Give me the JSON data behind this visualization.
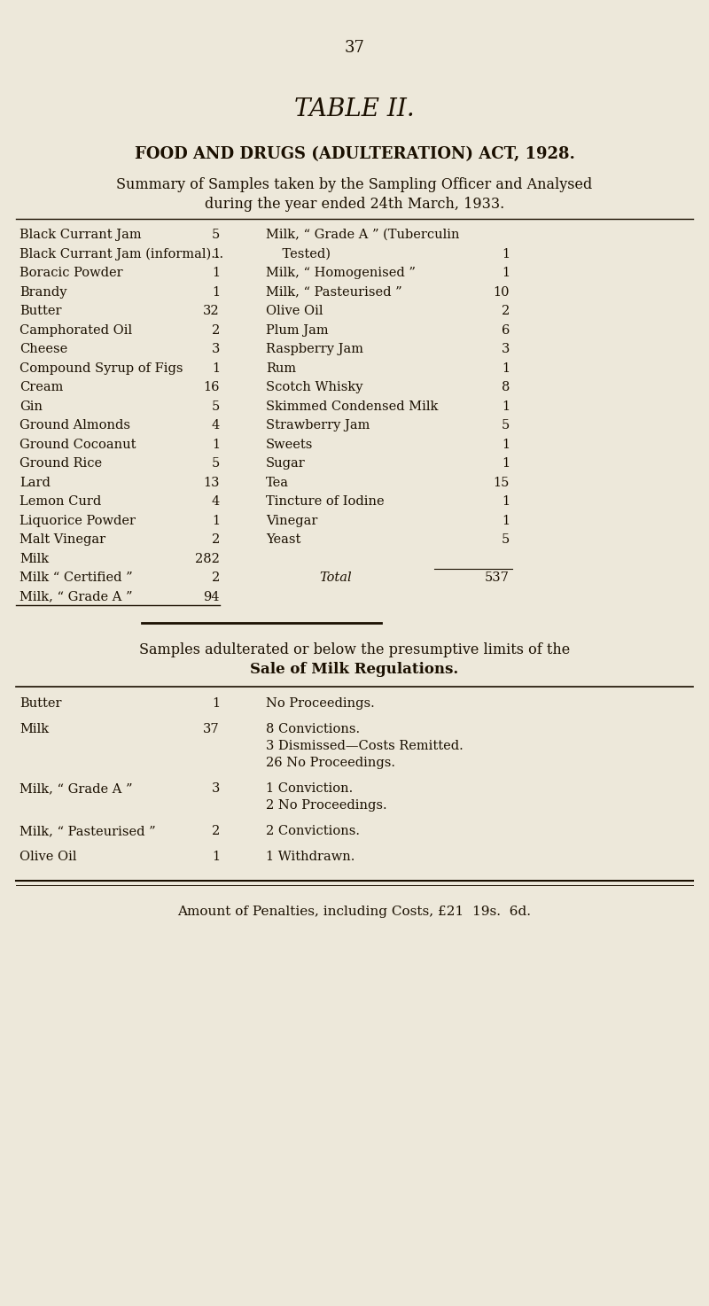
{
  "page_number": "37",
  "title": "TABLE II.",
  "subtitle": "FOOD AND DRUGS (ADULTERATION) ACT, 1928.",
  "description_line1": "Summary of Samples taken by the Sampling Officer and Analysed",
  "description_line2": "during the year ended 24th March, 1933.",
  "left_col": [
    [
      "Black Currant Jam",
      "5"
    ],
    [
      "Black Currant Jam (informal)...",
      "1"
    ],
    [
      "Boracic Powder",
      "1"
    ],
    [
      "Brandy",
      "1"
    ],
    [
      "Butter",
      "32"
    ],
    [
      "Camphorated Oil",
      "2"
    ],
    [
      "Cheese",
      "3"
    ],
    [
      "Compound Syrup of Figs",
      "1"
    ],
    [
      "Cream",
      "16"
    ],
    [
      "Gin",
      "5"
    ],
    [
      "Ground Almonds",
      "4"
    ],
    [
      "Ground Cocoanut",
      "1"
    ],
    [
      "Ground Rice",
      "5"
    ],
    [
      "Lard",
      "13"
    ],
    [
      "Lemon Curd",
      "4"
    ],
    [
      "Liquorice Powder",
      "1"
    ],
    [
      "Malt Vinegar",
      "2"
    ],
    [
      "Milk",
      "282"
    ],
    [
      "Milk “ Certified ”",
      "2"
    ],
    [
      "Milk, “ Grade A ”",
      "94"
    ]
  ],
  "right_col": [
    [
      "Milk, “ Grade A ” (Tuberculin",
      ""
    ],
    [
      "    Tested)",
      "1"
    ],
    [
      "Milk, “ Homogenised ”",
      "1"
    ],
    [
      "Milk, “ Pasteurised ”",
      "10"
    ],
    [
      "Olive Oil",
      "2"
    ],
    [
      "Plum Jam",
      "6"
    ],
    [
      "Raspberry Jam",
      "3"
    ],
    [
      "Rum",
      "1"
    ],
    [
      "Scotch Whisky",
      "8"
    ],
    [
      "Skimmed Condensed Milk",
      "1"
    ],
    [
      "Strawberry Jam",
      "5"
    ],
    [
      "Sweets",
      "1"
    ],
    [
      "Sugar",
      "1"
    ],
    [
      "Tea",
      "15"
    ],
    [
      "Tincture of Iodine",
      "1"
    ],
    [
      "Vinegar",
      "1"
    ],
    [
      "Yeast",
      "5"
    ],
    [
      "",
      ""
    ],
    [
      "Total",
      "537"
    ],
    [
      "",
      ""
    ]
  ],
  "section2_title1": "Samples adulterated or below the presumptive limits of the",
  "section2_title2": "Sale of Milk Regulations.",
  "section2_rows": [
    {
      "item": "Butter",
      "value": "1",
      "notes": [
        "No Proceedings."
      ]
    },
    {
      "item": "Milk",
      "value": "37",
      "notes": [
        "8 Convictions.",
        "3 Dismissed—Costs Remitted.",
        "26 No Proceedings."
      ]
    },
    {
      "item": "Milk, “ Grade A ”",
      "value": "3",
      "notes": [
        "1 Conviction.",
        "2 No Proceedings."
      ]
    },
    {
      "item": "Milk, “ Pasteurised ”",
      "value": "2",
      "notes": [
        "2 Convictions."
      ]
    },
    {
      "item": "Olive Oil",
      "value": "1",
      "notes": [
        "1 Withdrawn."
      ]
    }
  ],
  "footer": "Amount of Penalties, including Costs, £21  19s.  6d.",
  "bg_color": "#ede8da",
  "text_color": "#1a0f00",
  "fig_width": 8.0,
  "fig_height": 14.74,
  "dpi": 100
}
